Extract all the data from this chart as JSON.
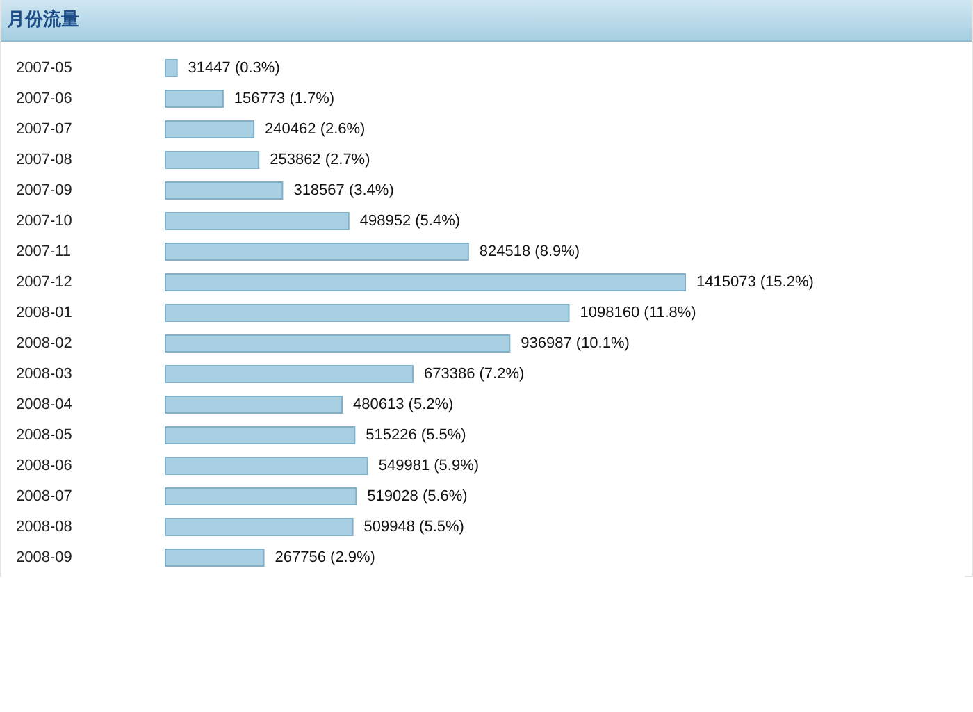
{
  "chart_data": {
    "type": "bar",
    "orientation": "horizontal",
    "title": "月份流量",
    "color": "#a8cfe2",
    "categories": [
      "2007-05",
      "2007-06",
      "2007-07",
      "2007-08",
      "2007-09",
      "2007-10",
      "2007-11",
      "2007-12",
      "2008-01",
      "2008-02",
      "2008-03",
      "2008-04",
      "2008-05",
      "2008-06",
      "2008-07",
      "2008-08",
      "2008-09"
    ],
    "values": [
      31447,
      156773,
      240462,
      253862,
      318567,
      498952,
      824518,
      1415073,
      1098160,
      936987,
      673386,
      480613,
      515226,
      549981,
      519028,
      509948,
      267756
    ],
    "value_labels": [
      "31447 (0.3%)",
      "156773 (1.7%)",
      "240462 (2.6%)",
      "253862 (2.7%)",
      "318567 (3.4%)",
      "498952 (5.4%)",
      "824518 (8.9%)",
      "1415073 (15.2%)",
      "1098160 (11.8%)",
      "936987 (10.1%)",
      "673386 (7.2%)",
      "480613 (5.2%)",
      "515226 (5.5%)",
      "549981 (5.9%)",
      "519028 (5.6%)",
      "509948 (5.5%)",
      "267756 (2.9%)"
    ],
    "tick_labels": "y"
  }
}
